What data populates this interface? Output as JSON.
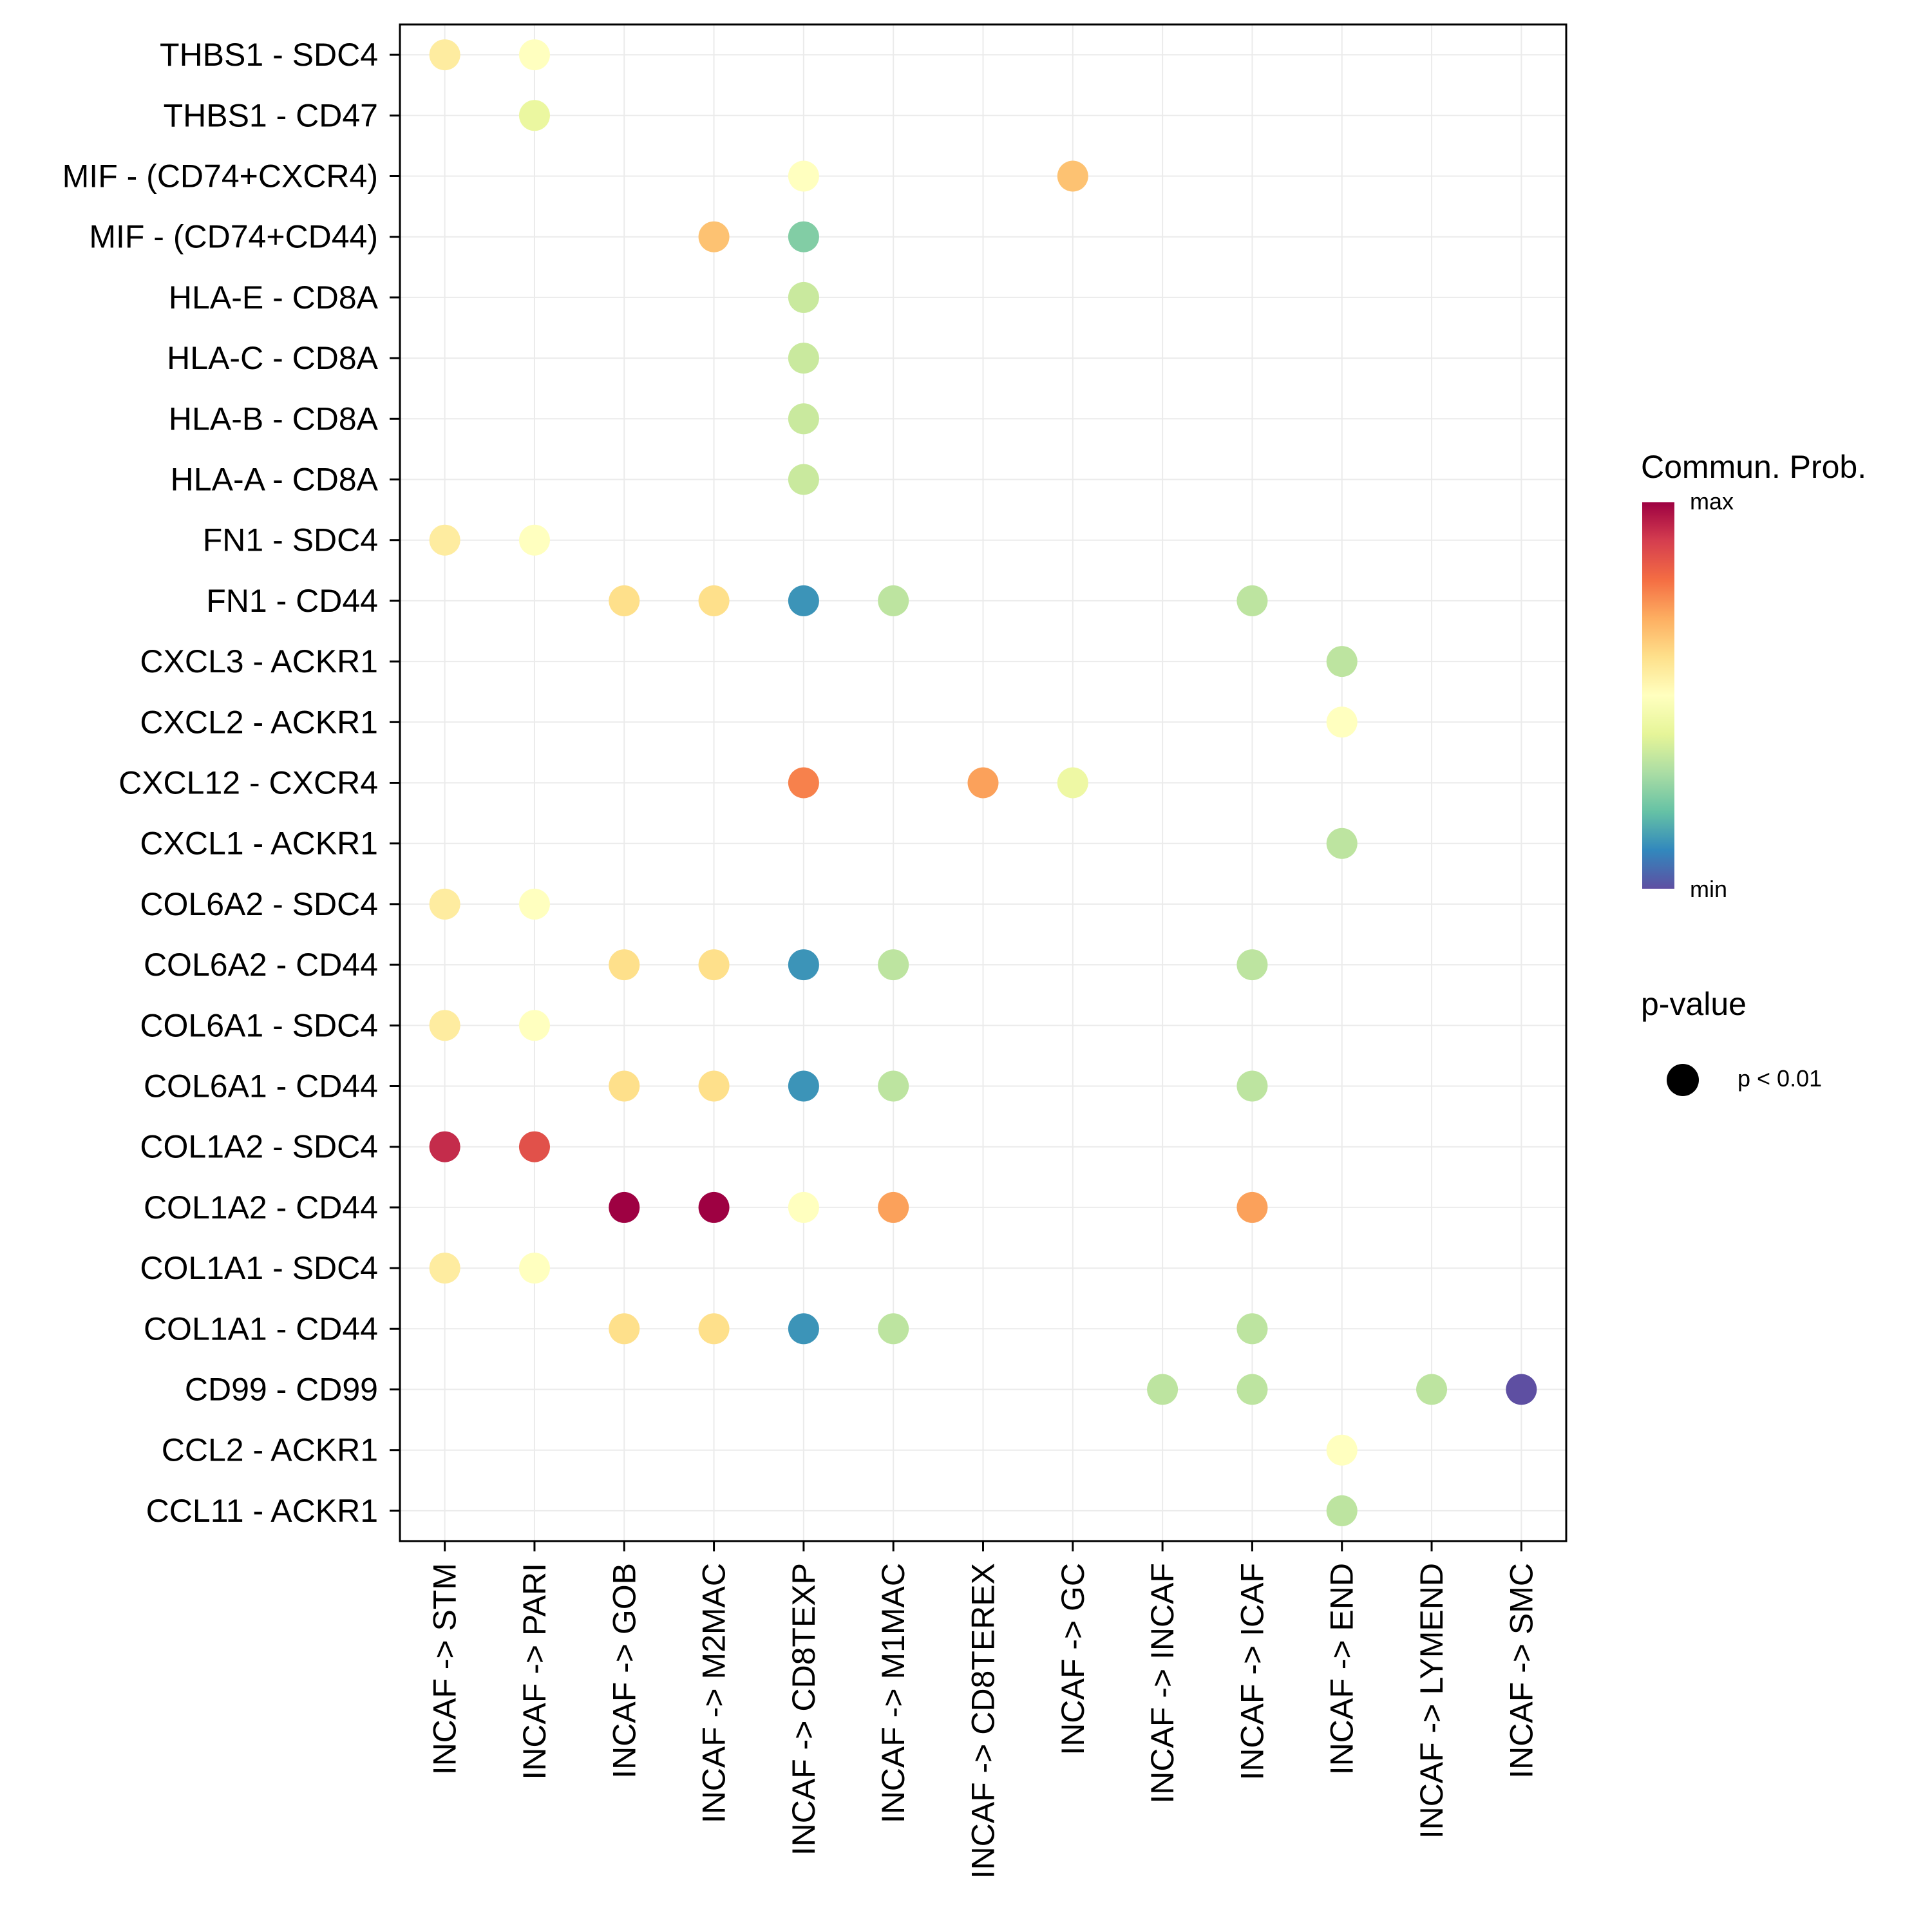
{
  "chart_data": {
    "type": "dot",
    "x_categories": [
      "INCAF -> STM",
      "INCAF -> PARI",
      "INCAF -> GOB",
      "INCAF -> M2MAC",
      "INCAF -> CD8TEXP",
      "INCAF -> M1MAC",
      "INCAF -> CD8TEREX",
      "INCAF -> GC",
      "INCAF -> INCAF",
      "INCAF -> ICAF",
      "INCAF -> END",
      "INCAF -> LYMEND",
      "INCAF -> SMC"
    ],
    "y_categories": [
      "THBS1 - SDC4",
      "THBS1 - CD47",
      "MIF - (CD74+CXCR4)",
      "MIF - (CD74+CD44)",
      "HLA-E - CD8A",
      "HLA-C - CD8A",
      "HLA-B - CD8A",
      "HLA-A - CD8A",
      "FN1 - SDC4",
      "FN1 - CD44",
      "CXCL3 - ACKR1",
      "CXCL2 - ACKR1",
      "CXCL12 - CXCR4",
      "CXCL1 - ACKR1",
      "COL6A2 - SDC4",
      "COL6A2 - CD44",
      "COL6A1 - SDC4",
      "COL6A1 - CD44",
      "COL1A2 - SDC4",
      "COL1A2 - CD44",
      "COL1A1 - SDC4",
      "COL1A1 - CD44",
      "CD99 - CD99",
      "CCL2 - ACKR1",
      "CCL11 - ACKR1"
    ],
    "points": [
      {
        "y": "THBS1 - SDC4",
        "x": "INCAF -> STM",
        "value": 0.56
      },
      {
        "y": "THBS1 - SDC4",
        "x": "INCAF -> PARI",
        "value": 0.5
      },
      {
        "y": "THBS1 - CD47",
        "x": "INCAF -> PARI",
        "value": 0.42
      },
      {
        "y": "MIF - (CD74+CXCR4)",
        "x": "INCAF -> CD8TEXP",
        "value": 0.5
      },
      {
        "y": "MIF - (CD74+CXCR4)",
        "x": "INCAF -> GC",
        "value": 0.66
      },
      {
        "y": "MIF - (CD74+CD44)",
        "x": "INCAF -> M2MAC",
        "value": 0.66
      },
      {
        "y": "MIF - (CD74+CD44)",
        "x": "INCAF -> CD8TEXP",
        "value": 0.24
      },
      {
        "y": "HLA-E - CD8A",
        "x": "INCAF -> CD8TEXP",
        "value": 0.35
      },
      {
        "y": "HLA-C - CD8A",
        "x": "INCAF -> CD8TEXP",
        "value": 0.35
      },
      {
        "y": "HLA-B - CD8A",
        "x": "INCAF -> CD8TEXP",
        "value": 0.35
      },
      {
        "y": "HLA-A - CD8A",
        "x": "INCAF -> CD8TEXP",
        "value": 0.35
      },
      {
        "y": "FN1 - SDC4",
        "x": "INCAF -> STM",
        "value": 0.56
      },
      {
        "y": "FN1 - SDC4",
        "x": "INCAF -> PARI",
        "value": 0.5
      },
      {
        "y": "FN1 - CD44",
        "x": "INCAF -> GOB",
        "value": 0.6
      },
      {
        "y": "FN1 - CD44",
        "x": "INCAF -> M2MAC",
        "value": 0.6
      },
      {
        "y": "FN1 - CD44",
        "x": "INCAF -> CD8TEXP",
        "value": 0.12
      },
      {
        "y": "FN1 - CD44",
        "x": "INCAF -> M1MAC",
        "value": 0.33
      },
      {
        "y": "FN1 - CD44",
        "x": "INCAF -> ICAF",
        "value": 0.33
      },
      {
        "y": "CXCL3 - ACKR1",
        "x": "INCAF -> END",
        "value": 0.33
      },
      {
        "y": "CXCL2 - ACKR1",
        "x": "INCAF -> END",
        "value": 0.5
      },
      {
        "y": "CXCL12 - CXCR4",
        "x": "INCAF -> CD8TEXP",
        "value": 0.77
      },
      {
        "y": "CXCL12 - CXCR4",
        "x": "INCAF -> CD8TEREX",
        "value": 0.72
      },
      {
        "y": "CXCL12 - CXCR4",
        "x": "INCAF -> GC",
        "value": 0.43
      },
      {
        "y": "CXCL1 - ACKR1",
        "x": "INCAF -> END",
        "value": 0.33
      },
      {
        "y": "COL6A2 - SDC4",
        "x": "INCAF -> STM",
        "value": 0.56
      },
      {
        "y": "COL6A2 - SDC4",
        "x": "INCAF -> PARI",
        "value": 0.5
      },
      {
        "y": "COL6A2 - CD44",
        "x": "INCAF -> GOB",
        "value": 0.6
      },
      {
        "y": "COL6A2 - CD44",
        "x": "INCAF -> M2MAC",
        "value": 0.6
      },
      {
        "y": "COL6A2 - CD44",
        "x": "INCAF -> CD8TEXP",
        "value": 0.12
      },
      {
        "y": "COL6A2 - CD44",
        "x": "INCAF -> M1MAC",
        "value": 0.33
      },
      {
        "y": "COL6A2 - CD44",
        "x": "INCAF -> ICAF",
        "value": 0.33
      },
      {
        "y": "COL6A1 - SDC4",
        "x": "INCAF -> STM",
        "value": 0.56
      },
      {
        "y": "COL6A1 - SDC4",
        "x": "INCAF -> PARI",
        "value": 0.5
      },
      {
        "y": "COL6A1 - CD44",
        "x": "INCAF -> GOB",
        "value": 0.6
      },
      {
        "y": "COL6A1 - CD44",
        "x": "INCAF -> M2MAC",
        "value": 0.6
      },
      {
        "y": "COL6A1 - CD44",
        "x": "INCAF -> CD8TEXP",
        "value": 0.12
      },
      {
        "y": "COL6A1 - CD44",
        "x": "INCAF -> M1MAC",
        "value": 0.33
      },
      {
        "y": "COL6A1 - CD44",
        "x": "INCAF -> ICAF",
        "value": 0.33
      },
      {
        "y": "COL1A2 - SDC4",
        "x": "INCAF -> STM",
        "value": 0.93
      },
      {
        "y": "COL1A2 - SDC4",
        "x": "INCAF -> PARI",
        "value": 0.86
      },
      {
        "y": "COL1A2 - CD44",
        "x": "INCAF -> GOB",
        "value": 1.0
      },
      {
        "y": "COL1A2 - CD44",
        "x": "INCAF -> M2MAC",
        "value": 1.0
      },
      {
        "y": "COL1A2 - CD44",
        "x": "INCAF -> CD8TEXP",
        "value": 0.5
      },
      {
        "y": "COL1A2 - CD44",
        "x": "INCAF -> M1MAC",
        "value": 0.72
      },
      {
        "y": "COL1A2 - CD44",
        "x": "INCAF -> ICAF",
        "value": 0.72
      },
      {
        "y": "COL1A1 - SDC4",
        "x": "INCAF -> STM",
        "value": 0.56
      },
      {
        "y": "COL1A1 - SDC4",
        "x": "INCAF -> PARI",
        "value": 0.5
      },
      {
        "y": "COL1A1 - CD44",
        "x": "INCAF -> GOB",
        "value": 0.6
      },
      {
        "y": "COL1A1 - CD44",
        "x": "INCAF -> M2MAC",
        "value": 0.6
      },
      {
        "y": "COL1A1 - CD44",
        "x": "INCAF -> CD8TEXP",
        "value": 0.12
      },
      {
        "y": "COL1A1 - CD44",
        "x": "INCAF -> M1MAC",
        "value": 0.33
      },
      {
        "y": "COL1A1 - CD44",
        "x": "INCAF -> ICAF",
        "value": 0.33
      },
      {
        "y": "CD99 - CD99",
        "x": "INCAF -> INCAF",
        "value": 0.33
      },
      {
        "y": "CD99 - CD99",
        "x": "INCAF -> ICAF",
        "value": 0.33
      },
      {
        "y": "CD99 - CD99",
        "x": "INCAF -> LYMEND",
        "value": 0.33
      },
      {
        "y": "CD99 - CD99",
        "x": "INCAF -> SMC",
        "value": 0.0
      },
      {
        "y": "CCL2 - ACKR1",
        "x": "INCAF -> END",
        "value": 0.5
      },
      {
        "y": "CCL11 - ACKR1",
        "x": "INCAF -> END",
        "value": 0.33
      }
    ],
    "color_scale": {
      "title": "Commun. Prob.",
      "max_label": "max",
      "min_label": "min",
      "stops": [
        "#5E4FA2",
        "#3288BD",
        "#66C2A5",
        "#ABDDA4",
        "#E6F598",
        "#FFFFBF",
        "#FEE08B",
        "#FDAE61",
        "#F46D43",
        "#D53E4F",
        "#9E0142"
      ]
    },
    "size_legend": {
      "title": "p-value",
      "label": "p < 0.01"
    }
  }
}
